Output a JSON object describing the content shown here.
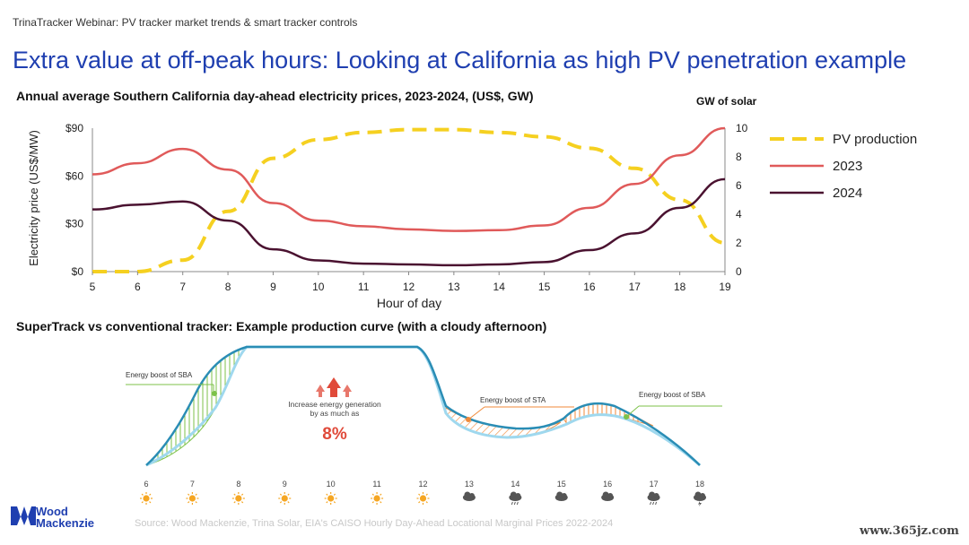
{
  "header": {
    "kicker": "TrinaTracker Webinar: PV tracker market trends & smart tracker controls",
    "title": "Extra value at off-peak hours: Looking at California as high PV penetration example"
  },
  "chart1": {
    "subtitle": "Annual average Southern California day-ahead electricity prices, 2023-2024, (US$, GW)",
    "right_axis_title": "GW of solar"
  },
  "chart2": {
    "subtitle": "SuperTrack vs conventional tracker: Example production curve (with a cloudy afternoon)",
    "annotations": {
      "sba_left": "Energy boost of SBA",
      "sta": "Energy boost of STA",
      "sba_right": "Energy boost of SBA",
      "increase_line1": "Increase energy generation",
      "increase_line2": "by as much as",
      "increase_value": "8%"
    },
    "hours": [
      "6",
      "7",
      "8",
      "9",
      "10",
      "11",
      "12",
      "13",
      "14",
      "15",
      "16",
      "17",
      "18"
    ],
    "weather_icons": [
      "sun-icon",
      "sun-icon",
      "sun-icon",
      "sun-icon",
      "sun-icon",
      "sun-icon",
      "sun-icon",
      "cloud-icon",
      "rain-cloud-icon",
      "cloud-icon",
      "cloud-icon",
      "rain-cloud-icon",
      "storm-cloud-icon"
    ]
  },
  "footer": {
    "logo_line1": "Wood",
    "logo_line2": "Mackenzie",
    "source": "Source: Wood Mackenzie, Trina Solar, EIA's CAISO Hourly Day-Ahead Locational Marginal Prices 2022-2024",
    "watermark": "www.365jz.com"
  },
  "colors": {
    "title_blue": "#1f3fb0",
    "pv_yellow": "#f5d020",
    "price_2023": "#e05a5a",
    "price_2024": "#4a1230",
    "curve_blue": "#2a8db5",
    "curve_light": "#9fd8ee",
    "sba_green": "#7cc24a",
    "sta_orange": "#f08a3a"
  },
  "chart_data": [
    {
      "type": "line",
      "xlabel": "Hour of day",
      "ylabel": "Electricity price (US$/MW)",
      "y2label": "GW of solar",
      "x": [
        5,
        6,
        7,
        8,
        9,
        10,
        11,
        12,
        13,
        14,
        15,
        16,
        17,
        18,
        19
      ],
      "xlim": [
        5,
        19
      ],
      "ylim": [
        0,
        90
      ],
      "y2lim": [
        0,
        10
      ],
      "y_ticks": [
        "$0",
        "$30",
        "$60",
        "$90"
      ],
      "y2_ticks": [
        "0",
        "2",
        "4",
        "6",
        "8",
        "10"
      ],
      "legend_position": "right",
      "series": [
        {
          "name": "PV production",
          "axis": "right",
          "style": "dashed",
          "color": "#f5d020",
          "values": [
            0,
            0,
            0.8,
            4.2,
            7.9,
            9.2,
            9.7,
            9.9,
            9.9,
            9.7,
            9.4,
            8.6,
            7.2,
            5,
            2
          ]
        },
        {
          "name": "2023",
          "axis": "left",
          "color": "#e05a5a",
          "values": [
            61,
            68,
            77,
            64,
            43,
            32,
            28.5,
            26.5,
            25.5,
            26,
            29,
            40,
            55,
            73,
            90
          ]
        },
        {
          "name": "2024",
          "axis": "left",
          "color": "#4a1230",
          "values": [
            39,
            42,
            44,
            32,
            14,
            7,
            5,
            4.5,
            4,
            4.5,
            6,
            13.5,
            24,
            40,
            58
          ]
        }
      ]
    }
  ]
}
